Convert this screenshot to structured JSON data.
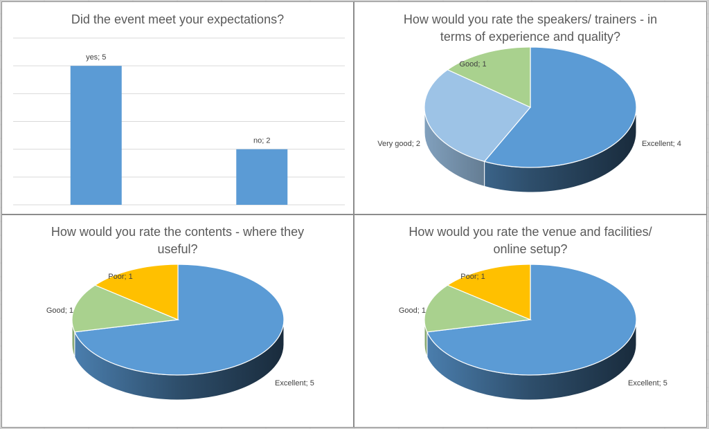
{
  "colors": {
    "excellent": "#5b9bd5",
    "very_good": "#9dc3e6",
    "good": "#a9d18e",
    "poor": "#ffc000",
    "gridline": "#d9d9d9"
  },
  "chart_data": [
    {
      "type": "bar",
      "title": "Did the event meet your expectations?",
      "categories": [
        "yes",
        "no"
      ],
      "values": [
        5,
        2
      ],
      "data_labels": [
        "yes; 5",
        "no; 2"
      ],
      "ylim": [
        0,
        6
      ],
      "grid": true,
      "legend": "none"
    },
    {
      "type": "pie",
      "title": "How would you rate the speakers/ trainers - in terms of experience and quality?",
      "categories": [
        "Excellent",
        "Very good",
        "Good"
      ],
      "values": [
        4,
        2,
        1
      ],
      "data_labels": [
        "Excellent; 4",
        "Very good; 2",
        "Good; 1"
      ],
      "legend": "none"
    },
    {
      "type": "pie",
      "title": "How would you rate the contents - where they useful?",
      "categories": [
        "Excellent",
        "Good",
        "Poor"
      ],
      "values": [
        5,
        1,
        1
      ],
      "data_labels": [
        "Excellent; 5",
        "Good; 1",
        "Poor; 1"
      ],
      "legend": "none"
    },
    {
      "type": "pie",
      "title": "How would you rate the venue and facilities/ online setup?",
      "categories": [
        "Excellent",
        "Good",
        "Poor"
      ],
      "values": [
        5,
        1,
        1
      ],
      "data_labels": [
        "Excellent; 5",
        "Good; 1",
        "Poor; 1"
      ],
      "legend": "none"
    }
  ]
}
